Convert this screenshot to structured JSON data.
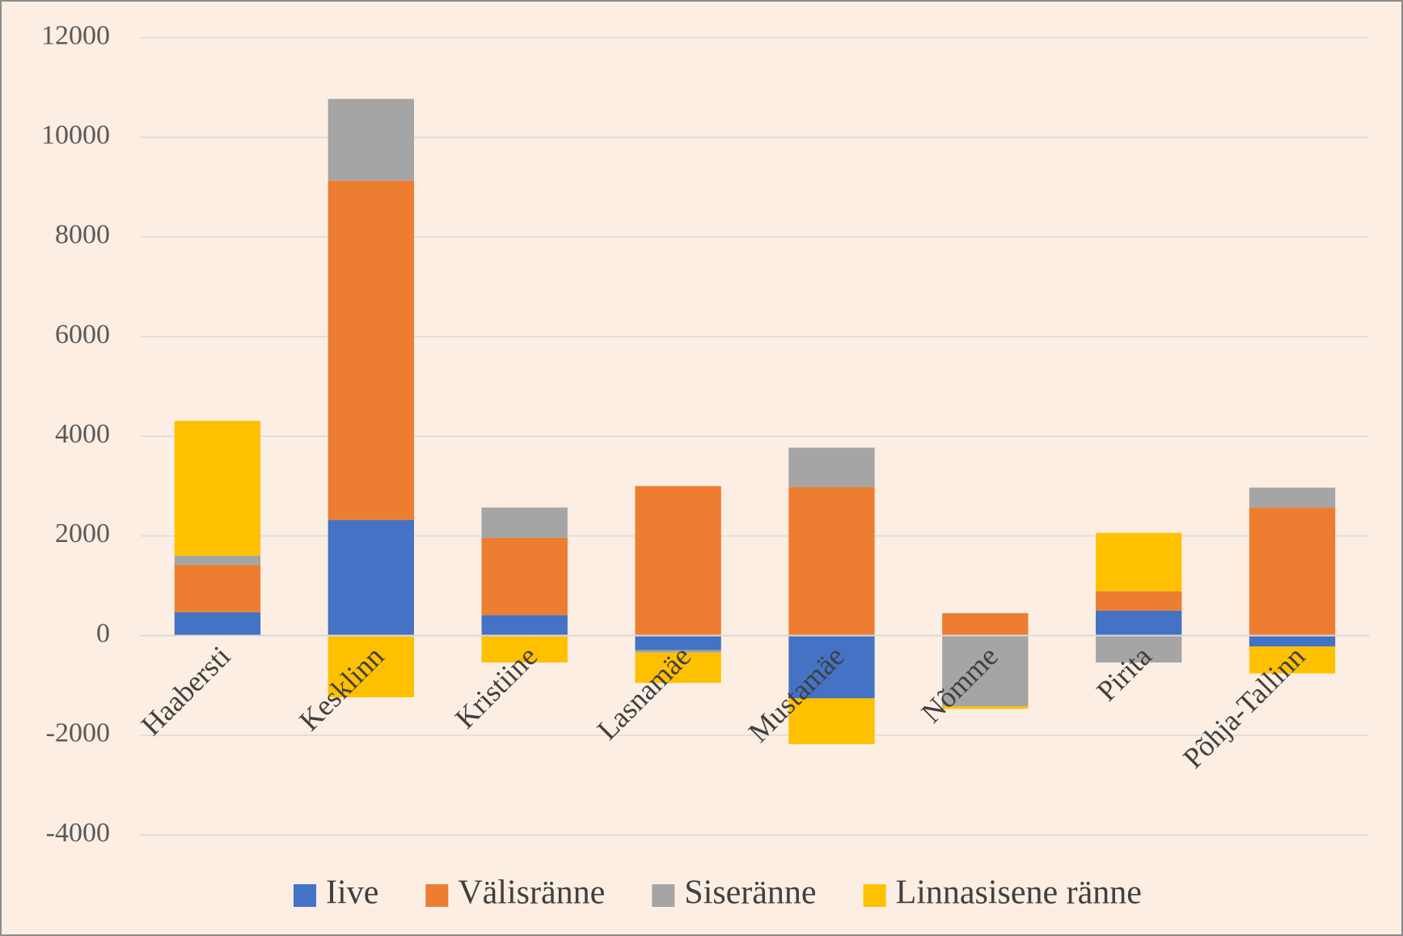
{
  "chart_data": {
    "type": "stacked_bar",
    "categories": [
      "Haabersti",
      "Kesklinn",
      "Kristiine",
      "Lasnamäe",
      "Mustamäe",
      "Nõmme",
      "Pirita",
      "Põhja-Tallinn"
    ],
    "series": [
      {
        "name": "Iive",
        "color": "#4472c4",
        "values": [
          470,
          2320,
          410,
          -290,
          -1260,
          0,
          500,
          -220
        ]
      },
      {
        "name": "Välisränne",
        "color": "#ed7d31",
        "values": [
          950,
          6810,
          1550,
          3000,
          2980,
          450,
          390,
          2570
        ]
      },
      {
        "name": "Siseränne",
        "color": "#a5a5a5",
        "values": [
          180,
          1640,
          610,
          -50,
          790,
          -1420,
          -540,
          400
        ]
      },
      {
        "name": "Linnasisene ränne",
        "color": "#ffc000",
        "values": [
          2710,
          -1240,
          -540,
          -610,
          -920,
          -50,
          1170,
          -540
        ]
      }
    ],
    "ylim": [
      -4000,
      12000
    ],
    "yticks": [
      -4000,
      -2000,
      0,
      2000,
      4000,
      6000,
      8000,
      10000,
      12000
    ],
    "grid": true,
    "legend": "bottom"
  }
}
